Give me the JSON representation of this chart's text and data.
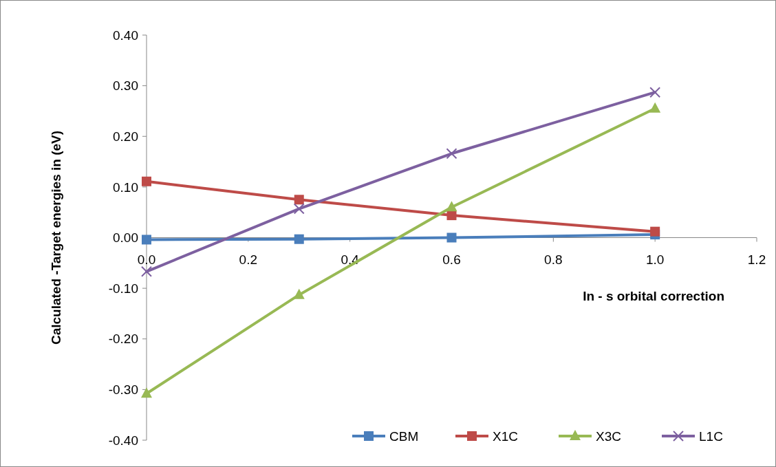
{
  "chart_data": {
    "type": "line",
    "xlabel": "In - s orbital correction",
    "ylabel": "Calculated -Target energies in (eV)",
    "xlim": [
      0,
      1.2
    ],
    "ylim": [
      -0.4,
      0.4
    ],
    "xticks": [
      {
        "value": 0,
        "label": "0.0"
      },
      {
        "value": 0.2,
        "label": "0.2"
      },
      {
        "value": 0.4,
        "label": "0.4"
      },
      {
        "value": 0.6,
        "label": "0.6"
      },
      {
        "value": 0.8,
        "label": "0.8"
      },
      {
        "value": 1,
        "label": "1.0"
      },
      {
        "value": 1.2,
        "label": "1.2"
      }
    ],
    "yticks": [
      {
        "value": -0.4,
        "label": "-0.40"
      },
      {
        "value": -0.3,
        "label": "-0.30"
      },
      {
        "value": -0.2,
        "label": "-0.20"
      },
      {
        "value": -0.1,
        "label": "-0.10"
      },
      {
        "value": 0,
        "label": "0.00"
      },
      {
        "value": 0.1,
        "label": "0.10"
      },
      {
        "value": 0.2,
        "label": "0.20"
      },
      {
        "value": 0.3,
        "label": "0.30"
      },
      {
        "value": 0.4,
        "label": "0.40"
      }
    ],
    "x": [
      0,
      0.3,
      0.6,
      1.0
    ],
    "series": [
      {
        "name": "CBM",
        "color": "#4a7ebb",
        "marker": "square",
        "values": [
          -0.004,
          -0.003,
          0.0,
          0.006
        ]
      },
      {
        "name": "X1C",
        "color": "#be4b48",
        "marker": "square",
        "values": [
          0.111,
          0.075,
          0.044,
          0.012
        ]
      },
      {
        "name": "X3C",
        "color": "#98b954",
        "marker": "triangle",
        "values": [
          -0.308,
          -0.113,
          0.06,
          0.255
        ]
      },
      {
        "name": "L1C",
        "color": "#7d60a0",
        "marker": "cross",
        "values": [
          -0.067,
          0.057,
          0.166,
          0.287
        ]
      }
    ],
    "grid": false,
    "legend": "bottom",
    "line_style": "solid"
  }
}
